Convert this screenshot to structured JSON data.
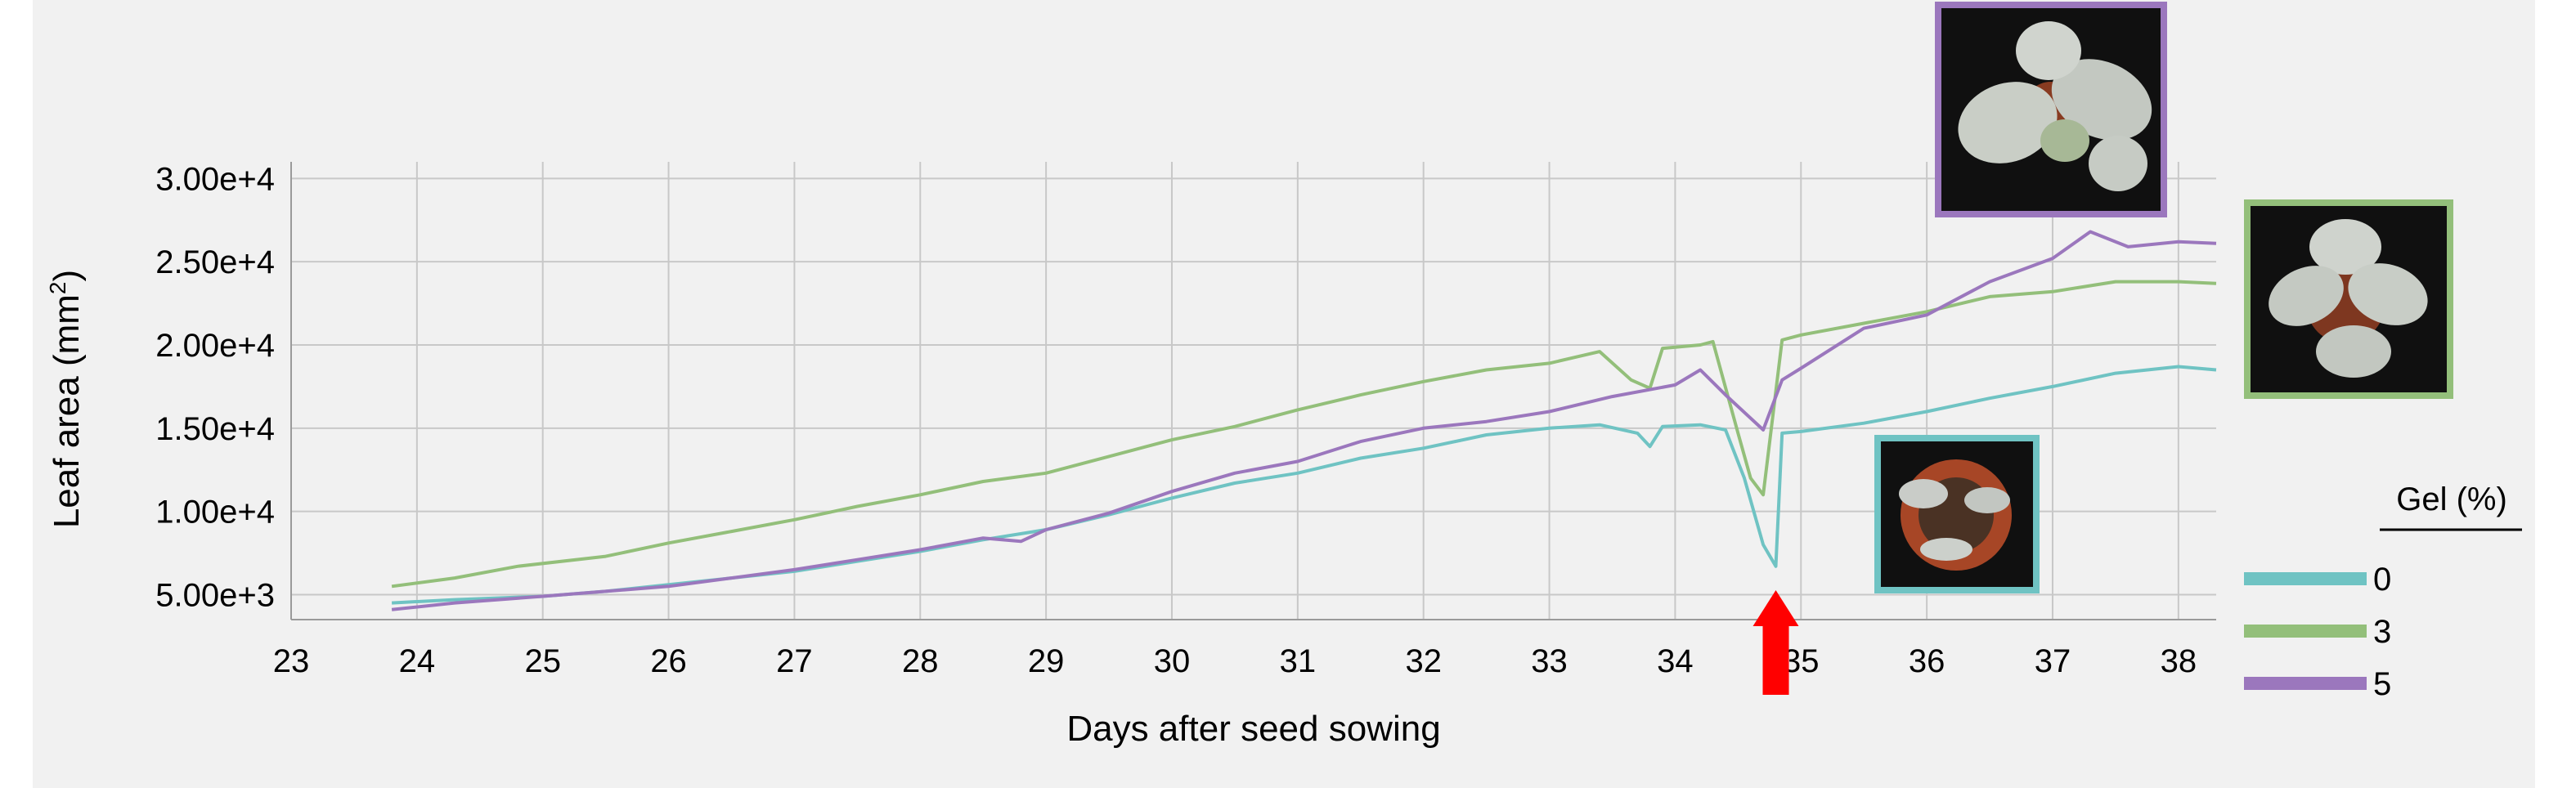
{
  "chart_data": {
    "type": "line",
    "xlabel": "Days after seed sowing",
    "ylabel": "Leaf area (mm",
    "ylabel_superscript": "2",
    "ylabel_suffix": ")",
    "xlim": [
      23,
      38.3
    ],
    "ylim": [
      3500,
      31000
    ],
    "x_ticks": [
      "23",
      "24",
      "25",
      "26",
      "27",
      "28",
      "29",
      "30",
      "31",
      "32",
      "33",
      "34",
      "35",
      "36",
      "37",
      "38"
    ],
    "y_ticks": [
      {
        "value": 5000,
        "label": "5.00e+3"
      },
      {
        "value": 10000,
        "label": "1.00e+4"
      },
      {
        "value": 15000,
        "label": "1.50e+4"
      },
      {
        "value": 20000,
        "label": "2.00e+4"
      },
      {
        "value": 25000,
        "label": "2.50e+4"
      },
      {
        "value": 30000,
        "label": "3.00e+4"
      }
    ],
    "grid": true,
    "legend": {
      "title": "Gel (%)",
      "position": "right"
    },
    "annotation": {
      "type": "arrow",
      "color": "#ff0000",
      "x": 34.8
    },
    "series": [
      {
        "name": "0",
        "color": "#6fc3c3",
        "points": [
          [
            23.8,
            4500
          ],
          [
            24.3,
            4700
          ],
          [
            25.0,
            4900
          ],
          [
            25.5,
            5200
          ],
          [
            26.0,
            5600
          ],
          [
            26.5,
            6000
          ],
          [
            27.0,
            6400
          ],
          [
            27.5,
            7000
          ],
          [
            28.0,
            7600
          ],
          [
            28.5,
            8300
          ],
          [
            29.0,
            8900
          ],
          [
            29.5,
            9800
          ],
          [
            30.0,
            10800
          ],
          [
            30.5,
            11700
          ],
          [
            31.0,
            12300
          ],
          [
            31.5,
            13200
          ],
          [
            32.0,
            13800
          ],
          [
            32.5,
            14600
          ],
          [
            33.0,
            15000
          ],
          [
            33.4,
            15200
          ],
          [
            33.7,
            14700
          ],
          [
            33.8,
            13900
          ],
          [
            33.9,
            15100
          ],
          [
            34.2,
            15200
          ],
          [
            34.4,
            14900
          ],
          [
            34.55,
            12000
          ],
          [
            34.7,
            8000
          ],
          [
            34.8,
            6700
          ],
          [
            34.85,
            14700
          ],
          [
            35.0,
            14800
          ],
          [
            35.5,
            15300
          ],
          [
            36.0,
            16000
          ],
          [
            36.5,
            16800
          ],
          [
            37.0,
            17500
          ],
          [
            37.5,
            18300
          ],
          [
            38.0,
            18700
          ],
          [
            38.3,
            18500
          ]
        ]
      },
      {
        "name": "3",
        "color": "#93bf7a",
        "points": [
          [
            23.8,
            5500
          ],
          [
            24.3,
            6000
          ],
          [
            24.8,
            6700
          ],
          [
            25.5,
            7300
          ],
          [
            26.0,
            8100
          ],
          [
            26.5,
            8800
          ],
          [
            27.0,
            9500
          ],
          [
            27.5,
            10300
          ],
          [
            28.0,
            11000
          ],
          [
            28.5,
            11800
          ],
          [
            29.0,
            12300
          ],
          [
            29.5,
            13300
          ],
          [
            30.0,
            14300
          ],
          [
            30.5,
            15100
          ],
          [
            31.0,
            16100
          ],
          [
            31.5,
            17000
          ],
          [
            32.0,
            17800
          ],
          [
            32.5,
            18500
          ],
          [
            33.0,
            18900
          ],
          [
            33.4,
            19600
          ],
          [
            33.65,
            17900
          ],
          [
            33.8,
            17400
          ],
          [
            33.9,
            19800
          ],
          [
            34.2,
            20000
          ],
          [
            34.3,
            20200
          ],
          [
            34.5,
            14700
          ],
          [
            34.6,
            12000
          ],
          [
            34.7,
            11000
          ],
          [
            34.85,
            20300
          ],
          [
            35.0,
            20600
          ],
          [
            35.5,
            21300
          ],
          [
            36.0,
            22000
          ],
          [
            36.5,
            22900
          ],
          [
            37.0,
            23200
          ],
          [
            37.5,
            23800
          ],
          [
            38.0,
            23800
          ],
          [
            38.3,
            23700
          ]
        ]
      },
      {
        "name": "5",
        "color": "#9b77bd",
        "points": [
          [
            23.8,
            4100
          ],
          [
            24.3,
            4500
          ],
          [
            25.0,
            4900
          ],
          [
            25.5,
            5200
          ],
          [
            26.0,
            5500
          ],
          [
            26.5,
            6000
          ],
          [
            27.0,
            6500
          ],
          [
            27.5,
            7100
          ],
          [
            28.0,
            7700
          ],
          [
            28.5,
            8400
          ],
          [
            28.8,
            8200
          ],
          [
            29.0,
            8900
          ],
          [
            29.5,
            9900
          ],
          [
            30.0,
            11200
          ],
          [
            30.5,
            12300
          ],
          [
            31.0,
            13000
          ],
          [
            31.5,
            14200
          ],
          [
            32.0,
            15000
          ],
          [
            32.5,
            15400
          ],
          [
            33.0,
            16000
          ],
          [
            33.5,
            16900
          ],
          [
            34.0,
            17600
          ],
          [
            34.2,
            18500
          ],
          [
            34.4,
            17000
          ],
          [
            34.7,
            14900
          ],
          [
            34.85,
            17900
          ],
          [
            35.0,
            18600
          ],
          [
            35.5,
            21000
          ],
          [
            36.0,
            21800
          ],
          [
            36.5,
            23800
          ],
          [
            37.0,
            25200
          ],
          [
            37.3,
            26800
          ],
          [
            37.6,
            25900
          ],
          [
            38.0,
            26200
          ],
          [
            38.3,
            26100
          ]
        ]
      }
    ]
  }
}
